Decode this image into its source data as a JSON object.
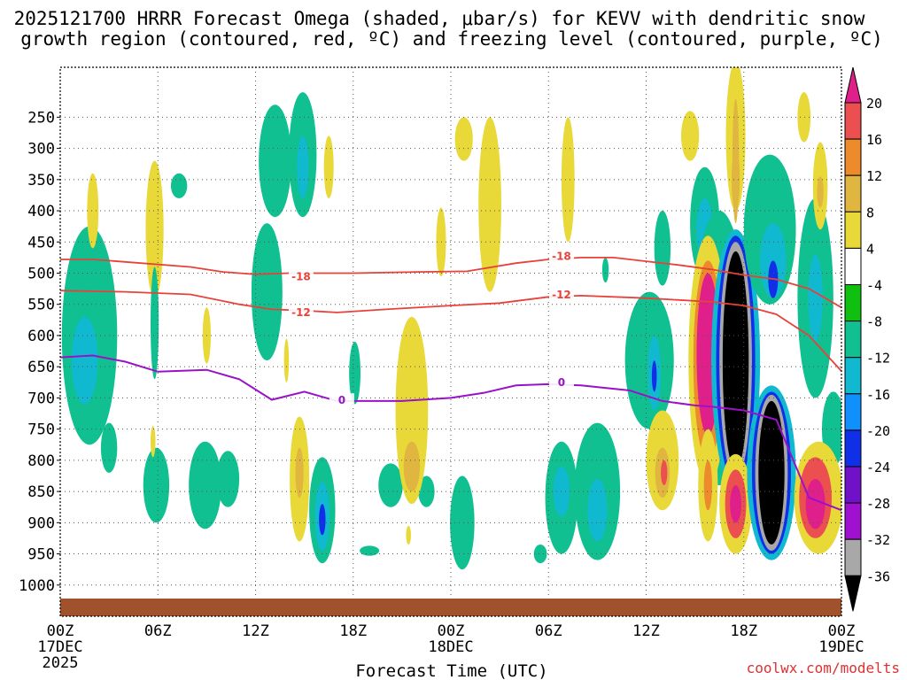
{
  "chart_data": {
    "type": "heatmap",
    "title_line1": "2025121700 HRRR Forecast Omega (shaded, μbar/s) for KEVV with dendritic snow",
    "title_line2": "growth region (contoured, red, ºC) and freezing level (contoured, purple, ºC)",
    "xlabel": "Forecast Time (UTC)",
    "credit": "coolwx.com/modelts",
    "x_hours": [
      0,
      6,
      12,
      18,
      24,
      30,
      36,
      42,
      48
    ],
    "x_labels": [
      "00Z",
      "06Z",
      "12Z",
      "18Z",
      "00Z",
      "06Z",
      "12Z",
      "18Z",
      "00Z"
    ],
    "x_date_labels": [
      {
        "hour": 0,
        "line1": "17DEC",
        "line2": "2025"
      },
      {
        "hour": 24,
        "line1": "18DEC",
        "line2": ""
      },
      {
        "hour": 48,
        "line1": "19DEC",
        "line2": ""
      }
    ],
    "xlim": [
      0,
      48
    ],
    "y_levels": [
      250,
      300,
      350,
      400,
      450,
      500,
      550,
      600,
      650,
      700,
      750,
      800,
      850,
      900,
      950,
      1000
    ],
    "ylim": [
      1050,
      170
    ],
    "colorbar": {
      "labels": [
        "20",
        "16",
        "12",
        "8",
        "4",
        "-4",
        "-8",
        "-12",
        "-16",
        "-20",
        "-24",
        "-28",
        "-32",
        "-36"
      ],
      "bins": [
        {
          "color": "#ec4f4f"
        },
        {
          "color": "#ec8a2c"
        },
        {
          "color": "#e0b640"
        },
        {
          "color": "#e8d838"
        },
        {
          "color": "#ffffff"
        },
        {
          "color": "#10c010"
        },
        {
          "color": "#10c090"
        },
        {
          "color": "#10b8d0"
        },
        {
          "color": "#1090ff"
        },
        {
          "color": "#1030e8"
        },
        {
          "color": "#7010c8"
        },
        {
          "color": "#a010d0"
        },
        {
          "color": "#a8a8a8"
        }
      ],
      "top_color": "#e0208a",
      "bottom_color": "#000000"
    },
    "series": [
      {
        "name": "-18",
        "kind": "dgz",
        "color": "#e8413a",
        "points": [
          [
            0,
            478
          ],
          [
            2,
            478
          ],
          [
            4,
            482
          ],
          [
            8,
            490
          ],
          [
            10,
            498
          ],
          [
            12,
            502
          ],
          [
            14,
            500
          ],
          [
            18,
            500
          ],
          [
            22,
            498
          ],
          [
            25,
            497
          ],
          [
            28,
            484
          ],
          [
            30,
            478
          ],
          [
            32,
            475
          ],
          [
            34,
            475
          ],
          [
            36,
            481
          ],
          [
            38,
            487
          ],
          [
            40,
            494
          ],
          [
            42,
            503
          ],
          [
            44,
            510
          ],
          [
            46,
            525
          ],
          [
            48,
            555
          ]
        ],
        "label_at": [
          [
            14.8,
            506
          ],
          [
            30.8,
            473
          ]
        ]
      },
      {
        "name": "-12",
        "kind": "dgz",
        "color": "#e8413a",
        "points": [
          [
            0,
            528
          ],
          [
            4,
            530
          ],
          [
            8,
            534
          ],
          [
            11,
            550
          ],
          [
            13,
            558
          ],
          [
            15,
            560
          ],
          [
            17,
            563
          ],
          [
            20,
            558
          ],
          [
            24,
            552
          ],
          [
            27,
            548
          ],
          [
            30,
            538
          ],
          [
            32,
            536
          ],
          [
            36,
            540
          ],
          [
            40,
            546
          ],
          [
            42,
            552
          ],
          [
            44,
            566
          ],
          [
            46,
            600
          ],
          [
            48,
            657
          ]
        ],
        "label_at": [
          [
            14.8,
            563
          ],
          [
            30.8,
            535
          ]
        ]
      },
      {
        "name": "0",
        "kind": "freezing",
        "color": "#9a12c8",
        "points": [
          [
            0,
            635
          ],
          [
            2,
            632
          ],
          [
            4,
            642
          ],
          [
            6,
            658
          ],
          [
            9,
            655
          ],
          [
            11,
            670
          ],
          [
            13,
            703
          ],
          [
            15,
            690
          ],
          [
            17,
            705
          ],
          [
            21,
            705
          ],
          [
            24,
            700
          ],
          [
            26,
            692
          ],
          [
            28,
            680
          ],
          [
            30,
            678
          ],
          [
            32,
            680
          ],
          [
            35,
            688
          ],
          [
            37,
            705
          ],
          [
            39,
            712
          ],
          [
            40,
            714
          ],
          [
            42,
            720
          ],
          [
            44,
            735
          ],
          [
            46,
            860
          ],
          [
            48,
            880
          ]
        ],
        "label_at": [
          [
            17.3,
            704
          ],
          [
            30.8,
            675
          ]
        ]
      }
    ],
    "omega_features": [
      {
        "t": 1.8,
        "p": 600,
        "rt": 1.7,
        "rp": 175,
        "value": -8
      },
      {
        "t": 1.5,
        "p": 640,
        "rt": 0.8,
        "rp": 70,
        "value": -12
      },
      {
        "t": 5.8,
        "p": 430,
        "rt": 0.55,
        "rp": 110,
        "value": 4
      },
      {
        "t": 2.0,
        "p": 400,
        "rt": 0.35,
        "rp": 60,
        "value": 4
      },
      {
        "t": 5.9,
        "p": 840,
        "rt": 0.8,
        "rp": 60,
        "value": -8
      },
      {
        "t": 3.0,
        "p": 780,
        "rt": 0.5,
        "rp": 40,
        "value": -8
      },
      {
        "t": 7.3,
        "p": 360,
        "rt": 0.5,
        "rp": 20,
        "value": -8
      },
      {
        "t": 5.8,
        "p": 580,
        "rt": 0.25,
        "rp": 90,
        "value": -8
      },
      {
        "t": 8.9,
        "p": 840,
        "rt": 1.0,
        "rp": 70,
        "value": -8
      },
      {
        "t": 10.3,
        "p": 830,
        "rt": 0.7,
        "rp": 45,
        "value": -8
      },
      {
        "t": 9.0,
        "p": 600,
        "rt": 0.25,
        "rp": 45,
        "value": 4
      },
      {
        "t": 5.7,
        "p": 770,
        "rt": 0.15,
        "rp": 25,
        "value": 4
      },
      {
        "t": 12.7,
        "p": 530,
        "rt": 0.95,
        "rp": 110,
        "value": -8
      },
      {
        "t": 13.2,
        "p": 320,
        "rt": 1.0,
        "rp": 90,
        "value": -8
      },
      {
        "t": 14.9,
        "p": 310,
        "rt": 0.85,
        "rp": 100,
        "value": -8
      },
      {
        "t": 14.9,
        "p": 330,
        "rt": 0.35,
        "rp": 50,
        "value": -12
      },
      {
        "t": 16.5,
        "p": 330,
        "rt": 0.3,
        "rp": 50,
        "value": 4
      },
      {
        "t": 14.7,
        "p": 830,
        "rt": 0.6,
        "rp": 100,
        "value": 4
      },
      {
        "t": 14.7,
        "p": 820,
        "rt": 0.25,
        "rp": 40,
        "value": 8
      },
      {
        "t": 16.1,
        "p": 880,
        "rt": 0.8,
        "rp": 85,
        "value": -8
      },
      {
        "t": 16.1,
        "p": 890,
        "rt": 0.45,
        "rp": 55,
        "value": -12
      },
      {
        "t": 16.1,
        "p": 895,
        "rt": 0.2,
        "rp": 25,
        "value": -20
      },
      {
        "t": 18.1,
        "p": 660,
        "rt": 0.35,
        "rp": 50,
        "value": -8
      },
      {
        "t": 13.9,
        "p": 640,
        "rt": 0.15,
        "rp": 35,
        "value": 4
      },
      {
        "t": 20.3,
        "p": 840,
        "rt": 0.75,
        "rp": 35,
        "value": -8
      },
      {
        "t": 22.5,
        "p": 850,
        "rt": 0.5,
        "rp": 25,
        "value": -8
      },
      {
        "t": 21.6,
        "p": 720,
        "rt": 1.0,
        "rp": 150,
        "value": 4
      },
      {
        "t": 21.6,
        "p": 810,
        "rt": 0.5,
        "rp": 40,
        "value": 8
      },
      {
        "t": 21.4,
        "p": 920,
        "rt": 0.15,
        "rp": 15,
        "value": 4
      },
      {
        "t": 19.0,
        "p": 945,
        "rt": 0.6,
        "rp": 8,
        "value": -8
      },
      {
        "t": 24.7,
        "p": 900,
        "rt": 0.75,
        "rp": 75,
        "value": -8
      },
      {
        "t": 24.8,
        "p": 285,
        "rt": 0.55,
        "rp": 35,
        "value": 4
      },
      {
        "t": 23.4,
        "p": 450,
        "rt": 0.3,
        "rp": 55,
        "value": 4
      },
      {
        "t": 26.4,
        "p": 390,
        "rt": 0.7,
        "rp": 140,
        "value": 4
      },
      {
        "t": 29.5,
        "p": 950,
        "rt": 0.4,
        "rp": 15,
        "value": -8
      },
      {
        "t": 30.8,
        "p": 860,
        "rt": 1.0,
        "rp": 90,
        "value": -8
      },
      {
        "t": 30.8,
        "p": 850,
        "rt": 0.5,
        "rp": 40,
        "value": -12
      },
      {
        "t": 33.0,
        "p": 850,
        "rt": 1.4,
        "rp": 110,
        "value": -8
      },
      {
        "t": 33.0,
        "p": 880,
        "rt": 0.6,
        "rp": 50,
        "value": -12
      },
      {
        "t": 31.2,
        "p": 350,
        "rt": 0.4,
        "rp": 100,
        "value": 4
      },
      {
        "t": 33.5,
        "p": 495,
        "rt": 0.2,
        "rp": 20,
        "value": -8
      },
      {
        "t": 36.2,
        "p": 640,
        "rt": 1.5,
        "rp": 110,
        "value": -8
      },
      {
        "t": 36.5,
        "p": 660,
        "rt": 0.4,
        "rp": 60,
        "value": -12
      },
      {
        "t": 36.5,
        "p": 665,
        "rt": 0.15,
        "rp": 25,
        "value": -20
      },
      {
        "t": 37.0,
        "p": 460,
        "rt": 0.5,
        "rp": 60,
        "value": -8
      },
      {
        "t": 37.0,
        "p": 800,
        "rt": 1.0,
        "rp": 80,
        "value": 4
      },
      {
        "t": 37.0,
        "p": 820,
        "rt": 0.45,
        "rp": 40,
        "value": 8
      },
      {
        "t": 37.1,
        "p": 820,
        "rt": 0.2,
        "rp": 20,
        "value": 16
      },
      {
        "t": 38.7,
        "p": 280,
        "rt": 0.55,
        "rp": 40,
        "value": 4
      },
      {
        "t": 39.6,
        "p": 420,
        "rt": 0.9,
        "rp": 90,
        "value": -8
      },
      {
        "t": 39.6,
        "p": 430,
        "rt": 0.5,
        "rp": 50,
        "value": -12
      },
      {
        "t": 40.5,
        "p": 620,
        "rt": 1.7,
        "rp": 220,
        "value": -8
      },
      {
        "t": 39.8,
        "p": 640,
        "rt": 1.2,
        "rp": 200,
        "value": 4
      },
      {
        "t": 39.8,
        "p": 640,
        "rt": 0.9,
        "rp": 160,
        "value": 12
      },
      {
        "t": 39.8,
        "p": 630,
        "rt": 0.7,
        "rp": 130,
        "value": 20
      },
      {
        "t": 39.8,
        "p": 840,
        "rt": 0.6,
        "rp": 90,
        "value": 4
      },
      {
        "t": 39.8,
        "p": 840,
        "rt": 0.25,
        "rp": 40,
        "value": 12
      },
      {
        "t": 41.5,
        "p": 280,
        "rt": 0.6,
        "rp": 120,
        "value": 4
      },
      {
        "t": 41.5,
        "p": 350,
        "rt": 0.25,
        "rp": 50,
        "value": 8
      },
      {
        "t": 41.5,
        "p": 320,
        "rt": 0.2,
        "rp": 100,
        "value": 8
      },
      {
        "t": 41.5,
        "p": 640,
        "rt": 1.5,
        "rp": 210,
        "value": -12
      },
      {
        "t": 41.5,
        "p": 640,
        "rt": 1.2,
        "rp": 200,
        "value": -20
      },
      {
        "t": 41.5,
        "p": 640,
        "rt": 1.0,
        "rp": 190,
        "value": -32
      },
      {
        "t": 41.5,
        "p": 640,
        "rt": 0.8,
        "rp": 175,
        "value": -36
      },
      {
        "t": 41.5,
        "p": 870,
        "rt": 1.0,
        "rp": 80,
        "value": 4
      },
      {
        "t": 41.5,
        "p": 870,
        "rt": 0.65,
        "rp": 55,
        "value": 16
      },
      {
        "t": 41.5,
        "p": 870,
        "rt": 0.35,
        "rp": 30,
        "value": 20
      },
      {
        "t": 43.6,
        "p": 430,
        "rt": 1.6,
        "rp": 120,
        "value": -8
      },
      {
        "t": 43.8,
        "p": 480,
        "rt": 0.8,
        "rp": 60,
        "value": -12
      },
      {
        "t": 43.8,
        "p": 510,
        "rt": 0.3,
        "rp": 30,
        "value": -20
      },
      {
        "t": 43.7,
        "p": 820,
        "rt": 1.5,
        "rp": 140,
        "value": -12
      },
      {
        "t": 43.7,
        "p": 820,
        "rt": 1.2,
        "rp": 130,
        "value": -20
      },
      {
        "t": 43.7,
        "p": 820,
        "rt": 1.0,
        "rp": 125,
        "value": -32
      },
      {
        "t": 43.7,
        "p": 820,
        "rt": 0.8,
        "rp": 115,
        "value": -36
      },
      {
        "t": 45.7,
        "p": 250,
        "rt": 0.4,
        "rp": 40,
        "value": 4
      },
      {
        "t": 46.4,
        "p": 540,
        "rt": 1.1,
        "rp": 160,
        "value": -8
      },
      {
        "t": 46.4,
        "p": 540,
        "rt": 0.45,
        "rp": 70,
        "value": -12
      },
      {
        "t": 46.7,
        "p": 360,
        "rt": 0.45,
        "rp": 70,
        "value": 4
      },
      {
        "t": 46.7,
        "p": 370,
        "rt": 0.2,
        "rp": 25,
        "value": 8
      },
      {
        "t": 47.5,
        "p": 750,
        "rt": 0.7,
        "rp": 60,
        "value": -8
      },
      {
        "t": 46.6,
        "p": 860,
        "rt": 1.5,
        "rp": 90,
        "value": 4
      },
      {
        "t": 46.4,
        "p": 860,
        "rt": 1.0,
        "rp": 65,
        "value": 16
      },
      {
        "t": 46.4,
        "p": 870,
        "rt": 0.6,
        "rp": 40,
        "value": 20
      }
    ]
  }
}
